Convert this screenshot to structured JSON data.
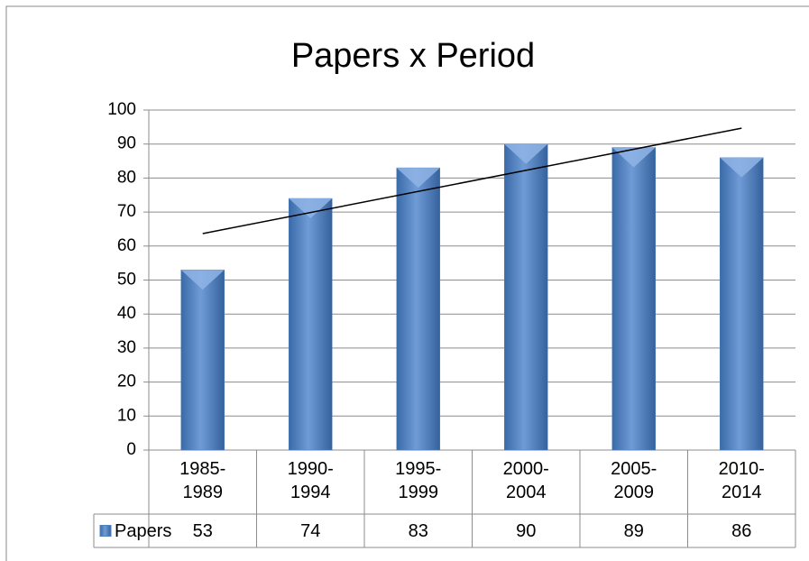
{
  "chart_data": {
    "type": "bar",
    "title": "Papers x Period",
    "categories": [
      "1985-1989",
      "1990-1994",
      "1995-1999",
      "2000-2004",
      "2005-2009",
      "2010-2014"
    ],
    "series": [
      {
        "name": "Papers",
        "color": "#4f81bd",
        "values": [
          53,
          74,
          83,
          90,
          89,
          86
        ]
      }
    ],
    "ylim": [
      0,
      100
    ],
    "yticks": [
      0,
      10,
      20,
      30,
      40,
      50,
      60,
      70,
      80,
      90,
      100
    ],
    "grid": true,
    "trendline": "linear",
    "data_table": true
  }
}
